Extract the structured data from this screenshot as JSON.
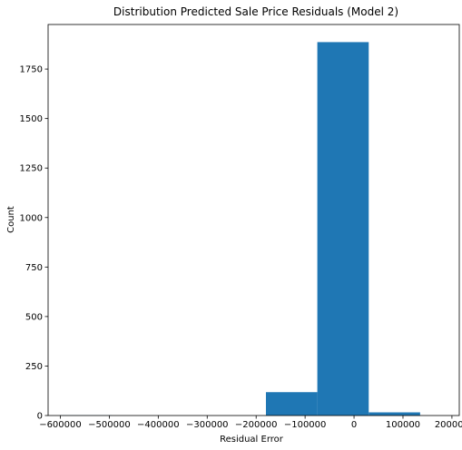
{
  "chart_data": {
    "type": "histogram",
    "title": "Distribution Predicted Sale Price Residuals (Model 2)",
    "xlabel": "Residual Error",
    "ylabel": "Count",
    "xlim": [
      -625000,
      215000
    ],
    "ylim": [
      0,
      1975
    ],
    "xticks": [
      -600000,
      -500000,
      -400000,
      -300000,
      -200000,
      -100000,
      0,
      100000,
      200000
    ],
    "xtick_labels": [
      "−600000",
      "−500000",
      "−400000",
      "−300000",
      "−200000",
      "−100000",
      "0",
      "100000",
      "200000"
    ],
    "yticks": [
      0,
      250,
      500,
      750,
      1000,
      1250,
      1500,
      1750
    ],
    "ytick_labels": [
      "0",
      "250",
      "500",
      "750",
      "1000",
      "1250",
      "1500",
      "1750"
    ],
    "bins": [
      {
        "x0": -600000,
        "x1": -495000,
        "count": 1
      },
      {
        "x0": -495000,
        "x1": -390000,
        "count": 0
      },
      {
        "x0": -390000,
        "x1": -285000,
        "count": 0
      },
      {
        "x0": -285000,
        "x1": -180000,
        "count": 0
      },
      {
        "x0": -180000,
        "x1": -75000,
        "count": 118
      },
      {
        "x0": -75000,
        "x1": 30000,
        "count": 1886
      },
      {
        "x0": 30000,
        "x1": 135000,
        "count": 16
      }
    ],
    "bar_color": "#1f77b4",
    "grid": false
  }
}
